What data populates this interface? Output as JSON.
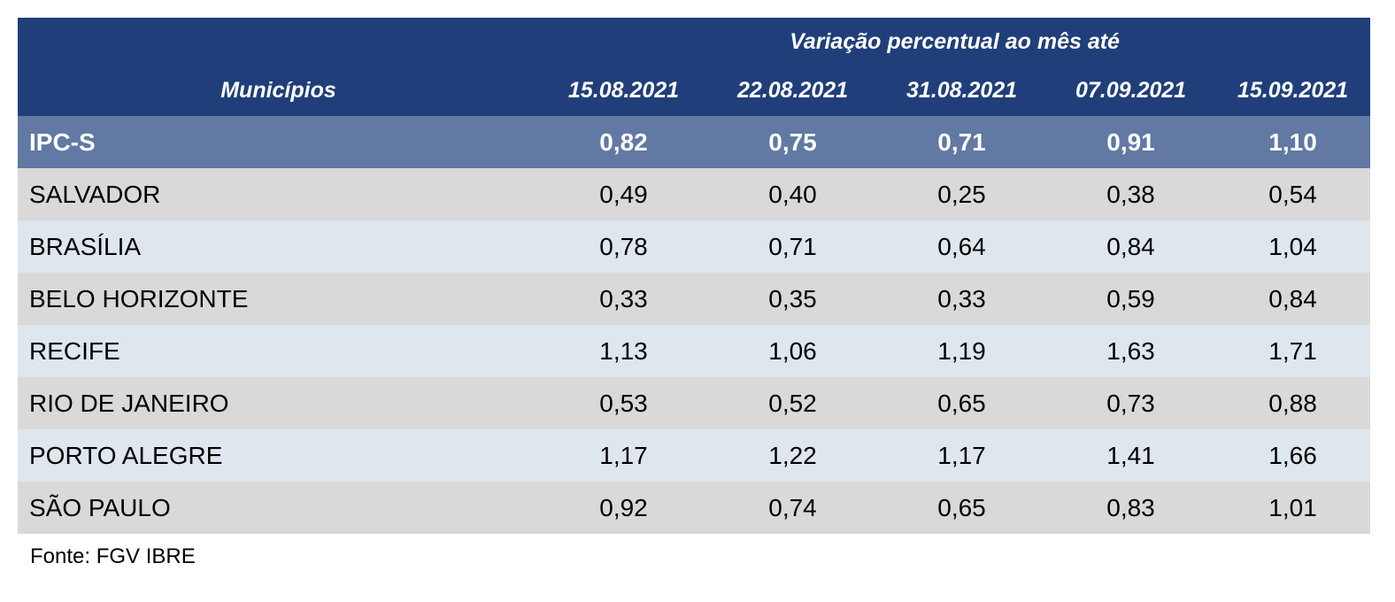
{
  "table": {
    "supertitle": "Variação percentual ao mês até",
    "first_column_header": "Municípios",
    "date_headers": [
      "15.08.2021",
      "22.08.2021",
      "31.08.2021",
      "07.09.2021",
      "15.09.2021"
    ],
    "rows": [
      {
        "name": "IPC-S",
        "values": [
          "0,82",
          "0,75",
          "0,71",
          "0,91",
          "1,10"
        ]
      },
      {
        "name": "SALVADOR",
        "values": [
          "0,49",
          "0,40",
          "0,25",
          "0,38",
          "0,54"
        ]
      },
      {
        "name": "BRASÍLIA",
        "values": [
          "0,78",
          "0,71",
          "0,64",
          "0,84",
          "1,04"
        ]
      },
      {
        "name": "BELO HORIZONTE",
        "values": [
          "0,33",
          "0,35",
          "0,33",
          "0,59",
          "0,84"
        ]
      },
      {
        "name": "RECIFE",
        "values": [
          "1,13",
          "1,06",
          "1,19",
          "1,63",
          "1,71"
        ]
      },
      {
        "name": "RIO DE JANEIRO",
        "values": [
          "0,53",
          "0,52",
          "0,65",
          "0,73",
          "0,88"
        ]
      },
      {
        "name": "PORTO ALEGRE",
        "values": [
          "1,17",
          "1,22",
          "1,17",
          "1,41",
          "1,66"
        ]
      },
      {
        "name": "SÃO PAULO",
        "values": [
          "0,92",
          "0,74",
          "0,65",
          "0,83",
          "1,01"
        ]
      }
    ]
  },
  "source": "Fonte: FGV IBRE",
  "colors": {
    "header_bg": "#203f7a",
    "summary_bg": "#6179a3",
    "row_gray": "#d9d9d9",
    "row_blue": "#dee6ee"
  }
}
